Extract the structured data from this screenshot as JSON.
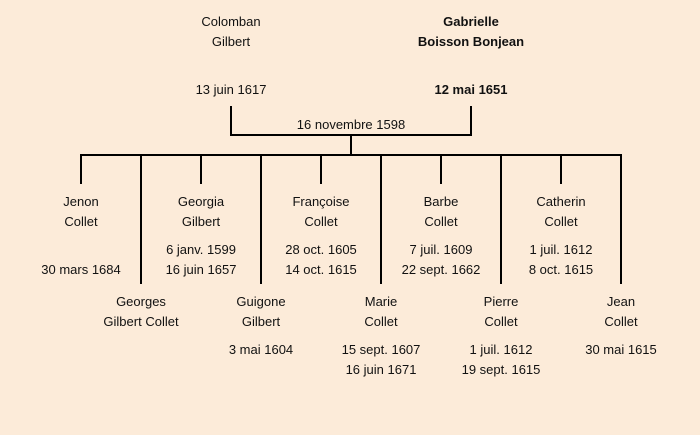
{
  "parents": [
    {
      "name_line1": "Colomban",
      "name_line2": "Gilbert",
      "date": "13 juin 1617",
      "bold": false
    },
    {
      "name_line1": "Gabrielle",
      "name_line2": "Boisson Bonjean",
      "date": "12 mai 1651",
      "bold": true
    }
  ],
  "marriage_date": "16 novembre 1598",
  "children": [
    {
      "name_line1": "Jenon",
      "name_line2": "Collet",
      "date1": "",
      "date2": "30 mars 1684"
    },
    {
      "name_line1": "Georges",
      "name_line2": "Gilbert Collet",
      "date1": "",
      "date2": ""
    },
    {
      "name_line1": "Georgia",
      "name_line2": "Gilbert",
      "date1": "6 janv. 1599",
      "date2": "16 juin 1657"
    },
    {
      "name_line1": "Guigone",
      "name_line2": "Gilbert",
      "date1": "3 mai 1604",
      "date2": ""
    },
    {
      "name_line1": "Françoise",
      "name_line2": "Collet",
      "date1": "28 oct. 1605",
      "date2": "14 oct. 1615"
    },
    {
      "name_line1": "Marie",
      "name_line2": "Collet",
      "date1": "15 sept. 1607",
      "date2": "16 juin 1671"
    },
    {
      "name_line1": "Barbe",
      "name_line2": "Collet",
      "date1": "7 juil. 1609",
      "date2": "22 sept. 1662"
    },
    {
      "name_line1": "Pierre",
      "name_line2": "Collet",
      "date1": "1 juil. 1612",
      "date2": "19 sept. 1615"
    },
    {
      "name_line1": "Catherin",
      "name_line2": "Collet",
      "date1": "1 juil. 1612",
      "date2": "8 oct. 1615"
    },
    {
      "name_line1": "Jean",
      "name_line2": "Collet",
      "date1": "30 mai 1615",
      "date2": ""
    }
  ]
}
